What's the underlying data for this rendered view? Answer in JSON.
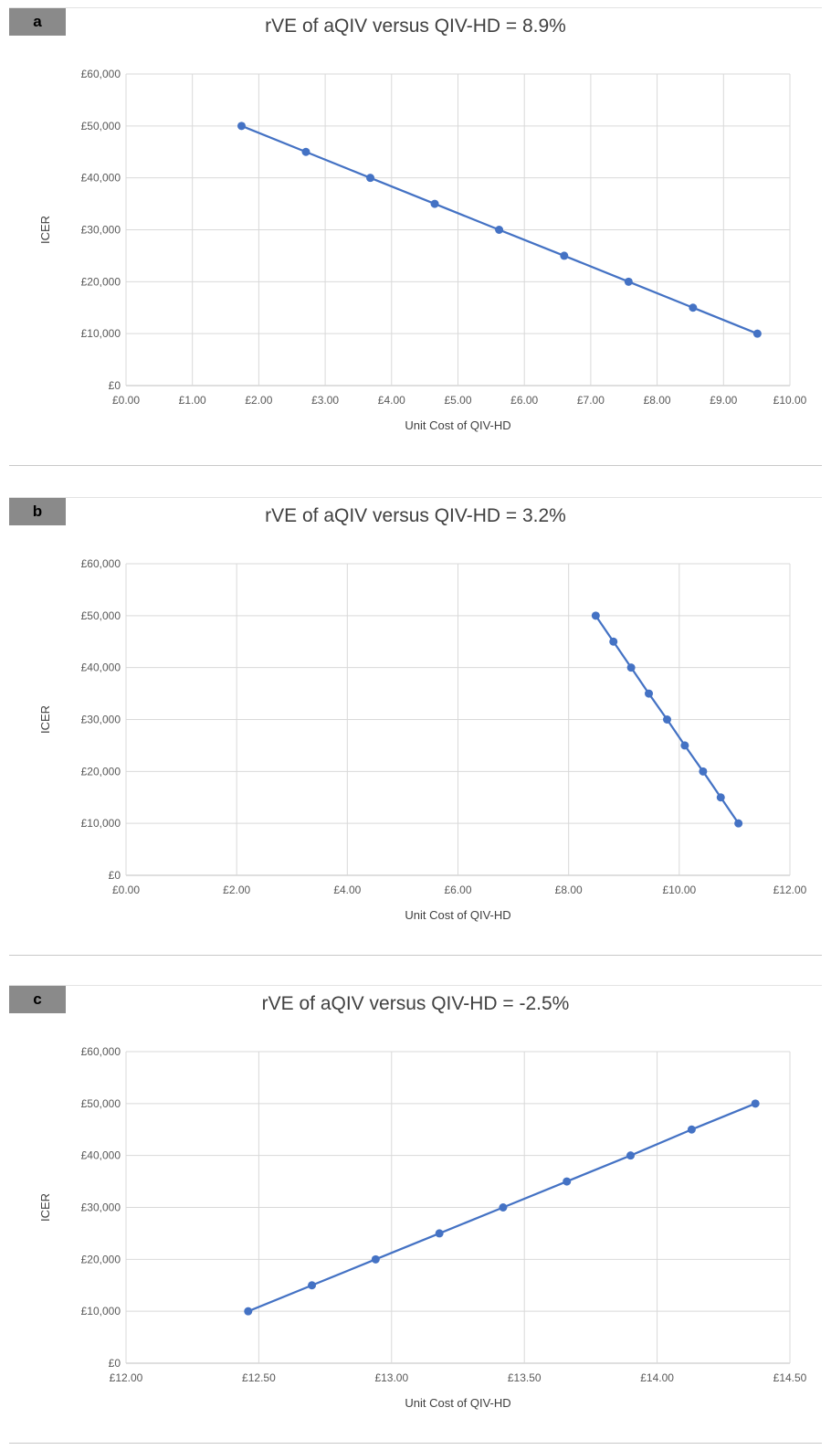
{
  "chart_data": [
    {
      "type": "line",
      "panel_label": "a",
      "title": "rVE of aQIV versus QIV-HD = 8.9%",
      "xlabel": "Unit Cost of QIV-HD",
      "ylabel": "ICER",
      "xlim": [
        0,
        10
      ],
      "ylim": [
        0,
        60000
      ],
      "xticks": [
        0,
        1,
        2,
        3,
        4,
        5,
        6,
        7,
        8,
        9,
        10
      ],
      "xtick_labels": [
        "£0.00",
        "£1.00",
        "£2.00",
        "£3.00",
        "£4.00",
        "£5.00",
        "£6.00",
        "£7.00",
        "£8.00",
        "£9.00",
        "£10.00"
      ],
      "yticks": [
        0,
        10000,
        20000,
        30000,
        40000,
        50000,
        60000
      ],
      "ytick_labels": [
        "£0",
        "£10,000",
        "£20,000",
        "£30,000",
        "£40,000",
        "£50,000",
        "£60,000"
      ],
      "grid": true,
      "color": "#4472C4",
      "series": [
        {
          "x": [
            1.74,
            2.71,
            3.68,
            4.65,
            5.62,
            6.6,
            7.57,
            8.54,
            9.51
          ],
          "y": [
            50000,
            45000,
            40000,
            35000,
            30000,
            25000,
            20000,
            15000,
            10000
          ]
        }
      ]
    },
    {
      "type": "line",
      "panel_label": "b",
      "title": "rVE of aQIV versus QIV-HD = 3.2%",
      "xlabel": "Unit Cost of QIV-HD",
      "ylabel": "ICER",
      "xlim": [
        0,
        12
      ],
      "ylim": [
        0,
        60000
      ],
      "xticks": [
        0,
        2,
        4,
        6,
        8,
        10,
        12
      ],
      "xtick_labels": [
        "£0.00",
        "£2.00",
        "£4.00",
        "£6.00",
        "£8.00",
        "£10.00",
        "£12.00"
      ],
      "yticks": [
        0,
        10000,
        20000,
        30000,
        40000,
        50000,
        60000
      ],
      "ytick_labels": [
        "£0",
        "£10,000",
        "£20,000",
        "£30,000",
        "£40,000",
        "£50,000",
        "£60,000"
      ],
      "grid": true,
      "color": "#4472C4",
      "series": [
        {
          "x": [
            8.49,
            8.81,
            9.13,
            9.45,
            9.78,
            10.1,
            10.43,
            10.75,
            11.07
          ],
          "y": [
            50000,
            45000,
            40000,
            35000,
            30000,
            25000,
            20000,
            15000,
            10000
          ]
        }
      ]
    },
    {
      "type": "line",
      "panel_label": "c",
      "title": "rVE of aQIV versus QIV-HD = -2.5%",
      "xlabel": "Unit Cost of QIV-HD",
      "ylabel": "ICER",
      "xlim": [
        12,
        14.5
      ],
      "ylim": [
        0,
        60000
      ],
      "xticks": [
        12,
        12.5,
        13,
        13.5,
        14,
        14.5
      ],
      "xtick_labels": [
        "£12.00",
        "£12.50",
        "£13.00",
        "£13.50",
        "£14.00",
        "£14.50"
      ],
      "yticks": [
        0,
        10000,
        20000,
        30000,
        40000,
        50000,
        60000
      ],
      "ytick_labels": [
        "£0",
        "£10,000",
        "£20,000",
        "£30,000",
        "£40,000",
        "£50,000",
        "£60,000"
      ],
      "grid": true,
      "color": "#4472C4",
      "series": [
        {
          "x": [
            12.46,
            12.7,
            12.94,
            13.18,
            13.42,
            13.66,
            13.9,
            14.13,
            14.37
          ],
          "y": [
            10000,
            15000,
            20000,
            25000,
            30000,
            35000,
            40000,
            45000,
            50000
          ]
        }
      ]
    }
  ]
}
